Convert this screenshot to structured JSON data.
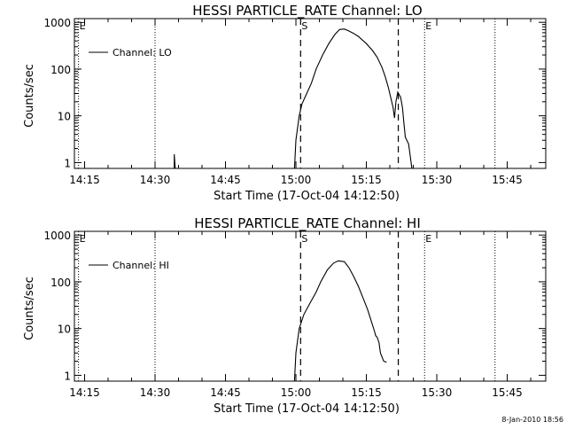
{
  "footer": {
    "timestamp": "8-Jan-2010 18:56"
  },
  "chart_data": [
    {
      "type": "line",
      "title": "HESSI PARTICLE_RATE Channel: LO",
      "xlabel": "Start Time (17-Oct-04 14:12:50)",
      "ylabel": "Counts/sec",
      "x_ticks": [
        {
          "minutes": 0,
          "label": "14:15"
        },
        {
          "minutes": 15,
          "label": "14:30"
        },
        {
          "minutes": 30,
          "label": "14:45"
        },
        {
          "minutes": 45,
          "label": "15:00"
        },
        {
          "minutes": 60,
          "label": "15:15"
        },
        {
          "minutes": 75,
          "label": "15:30"
        },
        {
          "minutes": 90,
          "label": "15:45"
        }
      ],
      "y_scale": "log",
      "y_ticks": [
        {
          "value": 1,
          "label": "1"
        },
        {
          "value": 10,
          "label": "10"
        },
        {
          "value": 100,
          "label": "100"
        },
        {
          "value": 1000,
          "label": "1000"
        }
      ],
      "xlim_minutes": [
        -2.17,
        98.2
      ],
      "ylim": [
        0.75,
        1200
      ],
      "markers": {
        "start": {
          "minutes": 46.0,
          "label": "S"
        },
        "end": {
          "minutes": 66.8,
          "label": "E"
        }
      },
      "dotted_lines_minutes": [
        -1.3,
        15.0,
        72.4,
        87.4
      ],
      "legend": {
        "label": "Channel: LO",
        "position": "top-left"
      },
      "series": [
        {
          "name": "Channel: LO",
          "segments": [
            [
              [
                19.1,
                0.72
              ],
              [
                19.1,
                1.5
              ],
              [
                19.3,
                0.72
              ]
            ],
            [
              [
                44.7,
                0.72
              ],
              [
                45.0,
                3
              ],
              [
                45.7,
                10
              ],
              [
                46.3,
                18
              ],
              [
                47.3,
                30
              ],
              [
                48.3,
                50
              ],
              [
                49.3,
                100
              ],
              [
                50.7,
                200
              ],
              [
                52.0,
                350
              ],
              [
                53.3,
                550
              ],
              [
                54.3,
                700
              ],
              [
                55.3,
                720
              ],
              [
                56.3,
                650
              ],
              [
                57.3,
                580
              ],
              [
                58.3,
                500
              ],
              [
                60.0,
                350
              ],
              [
                61.3,
                250
              ],
              [
                62.3,
                180
              ],
              [
                63.3,
                110
              ],
              [
                64.0,
                70
              ],
              [
                64.7,
                40
              ],
              [
                65.7,
                15
              ],
              [
                66.0,
                9
              ],
              [
                66.3,
                20
              ],
              [
                66.7,
                32
              ],
              [
                67.3,
                25
              ],
              [
                67.7,
                15
              ],
              [
                68.0,
                7
              ],
              [
                68.3,
                3.5
              ],
              [
                69.0,
                2.5
              ],
              [
                69.3,
                1.5
              ],
              [
                69.7,
                0.72
              ]
            ]
          ]
        }
      ]
    },
    {
      "type": "line",
      "title": "HESSI PARTICLE_RATE Channel: HI",
      "xlabel": "Start Time (17-Oct-04 14:12:50)",
      "ylabel": "Counts/sec",
      "x_ticks": [
        {
          "minutes": 0,
          "label": "14:15"
        },
        {
          "minutes": 15,
          "label": "14:30"
        },
        {
          "minutes": 30,
          "label": "14:45"
        },
        {
          "minutes": 45,
          "label": "15:00"
        },
        {
          "minutes": 60,
          "label": "15:15"
        },
        {
          "minutes": 75,
          "label": "15:30"
        },
        {
          "minutes": 90,
          "label": "15:45"
        }
      ],
      "y_scale": "log",
      "y_ticks": [
        {
          "value": 1,
          "label": "1"
        },
        {
          "value": 10,
          "label": "10"
        },
        {
          "value": 100,
          "label": "100"
        },
        {
          "value": 1000,
          "label": "1000"
        }
      ],
      "xlim_minutes": [
        -2.17,
        98.2
      ],
      "ylim": [
        0.75,
        1200
      ],
      "markers": {
        "start": {
          "minutes": 46.0,
          "label": "S"
        },
        "end": {
          "minutes": 66.8,
          "label": "E"
        }
      },
      "dotted_lines_minutes": [
        -1.3,
        15.0,
        72.4,
        87.4
      ],
      "legend": {
        "label": "Channel: HI",
        "position": "top-left"
      },
      "series": [
        {
          "name": "Channel: HI",
          "segments": [
            [
              [
                44.7,
                0.72
              ],
              [
                45.0,
                3
              ],
              [
                45.7,
                10
              ],
              [
                46.7,
                20
              ],
              [
                48.0,
                35
              ],
              [
                49.3,
                60
              ],
              [
                50.3,
                100
              ],
              [
                51.7,
                180
              ],
              [
                53.0,
                250
              ],
              [
                54.0,
                280
              ],
              [
                55.3,
                270
              ],
              [
                56.3,
                200
              ],
              [
                57.3,
                130
              ],
              [
                58.3,
                80
              ],
              [
                59.3,
                45
              ],
              [
                60.3,
                25
              ],
              [
                61.0,
                15
              ],
              [
                61.7,
                9
              ],
              [
                62.0,
                7
              ],
              [
                62.3,
                6.5
              ],
              [
                62.7,
                5
              ],
              [
                63.0,
                3
              ],
              [
                63.7,
                2
              ],
              [
                64.3,
                1.9
              ]
            ]
          ]
        }
      ]
    }
  ]
}
